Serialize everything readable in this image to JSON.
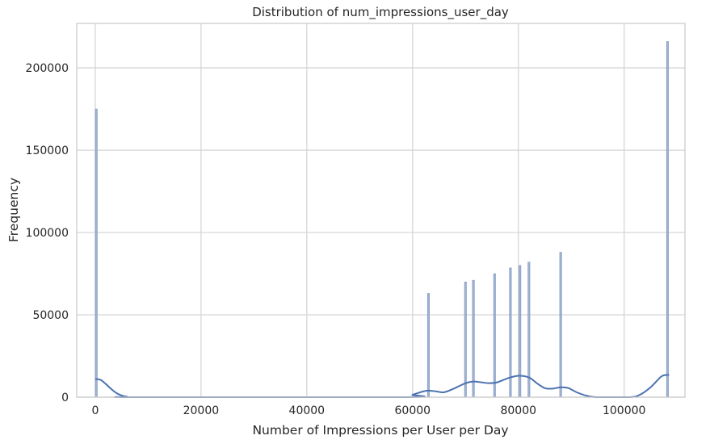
{
  "chart_data": {
    "type": "histogram",
    "title": "Distribution of num_impressions_user_day",
    "xlabel": "Number of Impressions per User per Day",
    "ylabel": "Frequency",
    "xlim": [
      -3500,
      111500
    ],
    "ylim": [
      0,
      227000
    ],
    "x_ticks": [
      0,
      20000,
      40000,
      60000,
      80000,
      100000
    ],
    "y_ticks": [
      0,
      50000,
      100000,
      150000,
      200000
    ],
    "grid": true,
    "colors": {
      "bar_fill": "#9fb3d1",
      "bar_edge": "#7c95bf",
      "kde_line": "#4c72b0",
      "grid": "#d6d6d6",
      "frame": "#cccccc"
    },
    "bars": [
      {
        "x": 200,
        "value": 175000
      },
      {
        "x": 63000,
        "value": 63000
      },
      {
        "x": 70000,
        "value": 70000
      },
      {
        "x": 71500,
        "value": 71000
      },
      {
        "x": 75500,
        "value": 75000
      },
      {
        "x": 78500,
        "value": 78500
      },
      {
        "x": 80300,
        "value": 80000
      },
      {
        "x": 82000,
        "value": 82000
      },
      {
        "x": 88000,
        "value": 88000
      },
      {
        "x": 108200,
        "value": 216000
      }
    ],
    "kde": [
      {
        "x": 0,
        "y": 11000
      },
      {
        "x": 1000,
        "y": 10500
      },
      {
        "x": 2000,
        "y": 8000
      },
      {
        "x": 3000,
        "y": 5000
      },
      {
        "x": 4000,
        "y": 2500
      },
      {
        "x": 5000,
        "y": 1000
      },
      {
        "x": 6000,
        "y": 300
      },
      {
        "x": 8000,
        "y": 0
      },
      {
        "x": 58000,
        "y": 0
      },
      {
        "x": 60000,
        "y": 1500
      },
      {
        "x": 62000,
        "y": 3500
      },
      {
        "x": 63000,
        "y": 4000
      },
      {
        "x": 64500,
        "y": 3500
      },
      {
        "x": 66000,
        "y": 3000
      },
      {
        "x": 68000,
        "y": 5500
      },
      {
        "x": 70000,
        "y": 8500
      },
      {
        "x": 71500,
        "y": 9500
      },
      {
        "x": 73000,
        "y": 9000
      },
      {
        "x": 74500,
        "y": 8500
      },
      {
        "x": 76000,
        "y": 9000
      },
      {
        "x": 78000,
        "y": 11500
      },
      {
        "x": 80000,
        "y": 13000
      },
      {
        "x": 82000,
        "y": 12000
      },
      {
        "x": 83500,
        "y": 8500
      },
      {
        "x": 85000,
        "y": 5500
      },
      {
        "x": 86500,
        "y": 5200
      },
      {
        "x": 88000,
        "y": 6000
      },
      {
        "x": 89500,
        "y": 5500
      },
      {
        "x": 91000,
        "y": 3000
      },
      {
        "x": 93000,
        "y": 800
      },
      {
        "x": 95000,
        "y": 0
      },
      {
        "x": 101000,
        "y": 0
      },
      {
        "x": 103000,
        "y": 1500
      },
      {
        "x": 105000,
        "y": 6000
      },
      {
        "x": 107000,
        "y": 12500
      },
      {
        "x": 108000,
        "y": 13500
      },
      {
        "x": 108500,
        "y": 13500
      }
    ]
  }
}
